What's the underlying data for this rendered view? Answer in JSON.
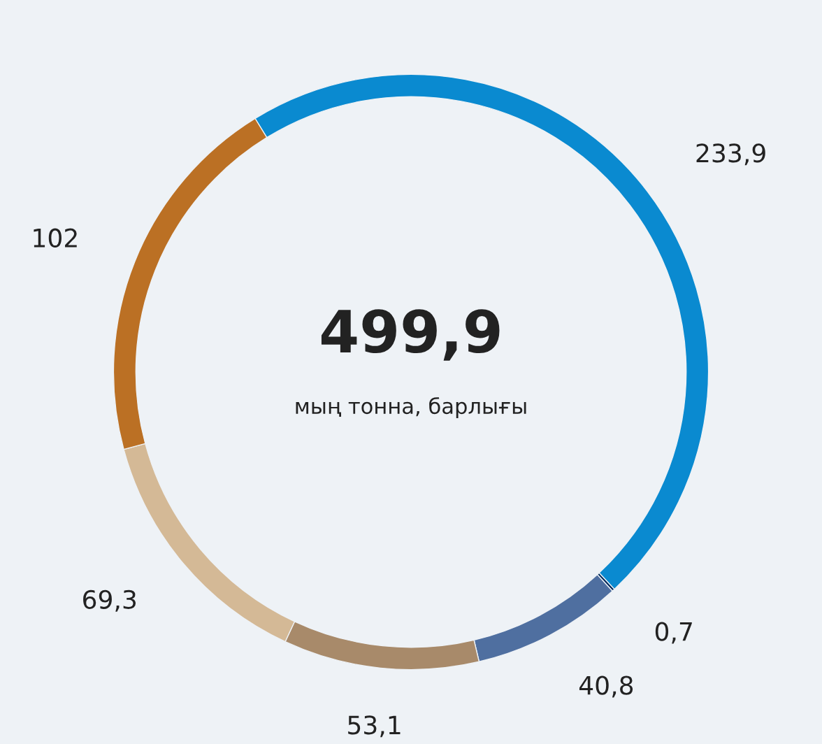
{
  "chart_data": {
    "type": "donut",
    "categories": [
      null,
      null,
      null,
      null,
      null,
      null
    ],
    "values": [
      233.9,
      0.7,
      40.8,
      53.1,
      69.3,
      102
    ],
    "colors": [
      "#0a8ad0",
      "#002a5c",
      "#4f6fa0",
      "#a88a6a",
      "#d4b996",
      "#bb7024"
    ],
    "value_labels": [
      "233,9",
      "0,7",
      "40,8",
      "53,1",
      "69,3",
      "102"
    ],
    "annotations": [
      "499,9",
      "мың тонна, барлығы"
    ]
  }
}
